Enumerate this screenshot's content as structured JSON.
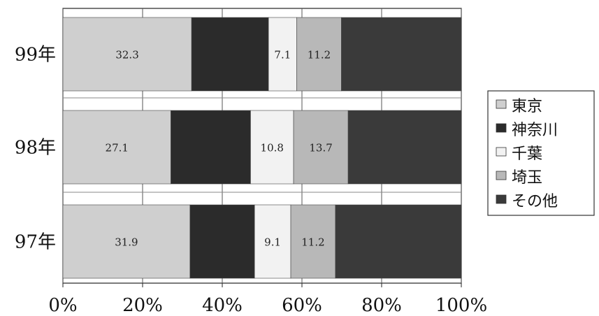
{
  "chart_data": {
    "type": "bar",
    "orientation": "horizontal",
    "stacked": "percent",
    "categories": [
      "99年",
      "98年",
      "97年"
    ],
    "series": [
      {
        "name": "東京",
        "values": [
          32.3,
          27.1,
          31.9
        ],
        "color": "#cfcfcf"
      },
      {
        "name": "神奈川",
        "values": [
          19.3,
          20.0,
          16.2
        ],
        "color": "#2b2b2b"
      },
      {
        "name": "千葉",
        "values": [
          7.1,
          10.8,
          9.1
        ],
        "color": "#f2f2f2"
      },
      {
        "name": "埼玉",
        "values": [
          11.2,
          13.7,
          11.2
        ],
        "color": "#b8b8b8"
      },
      {
        "name": "その他",
        "values": [
          30.1,
          28.4,
          31.6
        ],
        "color": "#3a3a3a"
      }
    ],
    "data_labels": [
      [
        "32.3",
        "",
        "7.1",
        "11.2",
        ""
      ],
      [
        "27.1",
        "",
        "10.8",
        "13.7",
        ""
      ],
      [
        "31.9",
        "",
        "9.1",
        "11.2",
        ""
      ]
    ],
    "x_ticks": [
      "0%",
      "20%",
      "40%",
      "60%",
      "80%",
      "100%"
    ],
    "xlim": [
      0,
      100
    ],
    "grid": true,
    "legend_position": "right"
  }
}
